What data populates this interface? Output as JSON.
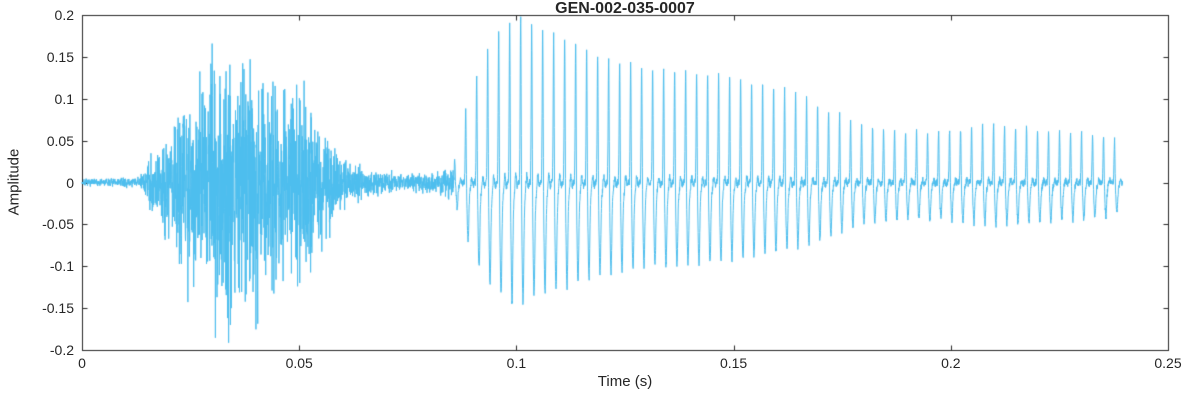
{
  "chart_data": {
    "type": "line",
    "title": "GEN-002-035-0007",
    "xlabel": "Time (s)",
    "ylabel": "Amplitude",
    "xlim": [
      0,
      0.25
    ],
    "ylim": [
      -0.2,
      0.2
    ],
    "xticks": [
      0,
      0.05,
      0.1,
      0.15,
      0.2,
      0.25
    ],
    "xtick_labels": [
      "0",
      "0.05",
      "0.1",
      "0.15",
      "0.2",
      "0.25"
    ],
    "yticks": [
      -0.2,
      -0.15,
      -0.1,
      -0.05,
      0,
      0.05,
      0.1,
      0.15,
      0.2
    ],
    "ytick_labels": [
      "-0.2",
      "-0.15",
      "-0.1",
      "-0.05",
      "0",
      "0.05",
      "0.1",
      "0.15",
      "0.2"
    ],
    "grid": false,
    "line_color": "#4DBEEE",
    "axis_color": "#262626",
    "background_color": "#ffffff",
    "waveform": {
      "description": "Speech-like audio waveform: initial silence, unvoiced noise burst peaking ~0.18 near t=0.034s, quiet gap, then strong periodic voiced segment peaking ~0.2 near t=0.1s and slowly decaying until signal ends at ~0.24s",
      "sample_rate": 24000,
      "duration": 0.2395,
      "segments": [
        {
          "type": "silence",
          "t0": 0,
          "t1": 0.014
        },
        {
          "type": "noise",
          "t0": 0.014,
          "t1": 0.062
        },
        {
          "type": "silence",
          "t0": 0.062,
          "t1": 0.0855
        },
        {
          "type": "voiced",
          "t0": 0.0855,
          "t1": 0.2395,
          "f0": 395
        }
      ],
      "envelope": [
        [
          0,
          0.004
        ],
        [
          0.013,
          0.006
        ],
        [
          0.018,
          0.05
        ],
        [
          0.022,
          0.1
        ],
        [
          0.027,
          0.12
        ],
        [
          0.031,
          0.14
        ],
        [
          0.034,
          0.18
        ],
        [
          0.037,
          0.15
        ],
        [
          0.04,
          0.13
        ],
        [
          0.045,
          0.12
        ],
        [
          0.05,
          0.11
        ],
        [
          0.054,
          0.08
        ],
        [
          0.058,
          0.05
        ],
        [
          0.062,
          0.02
        ],
        [
          0.07,
          0.012
        ],
        [
          0.08,
          0.012
        ],
        [
          0.0855,
          0.02
        ],
        [
          0.088,
          0.08
        ],
        [
          0.092,
          0.15
        ],
        [
          0.096,
          0.18
        ],
        [
          0.1,
          0.2
        ],
        [
          0.104,
          0.18
        ],
        [
          0.108,
          0.17
        ],
        [
          0.112,
          0.16
        ],
        [
          0.118,
          0.14
        ],
        [
          0.124,
          0.13
        ],
        [
          0.13,
          0.12
        ],
        [
          0.14,
          0.115
        ],
        [
          0.15,
          0.11
        ],
        [
          0.16,
          0.1
        ],
        [
          0.165,
          0.095
        ],
        [
          0.17,
          0.085
        ],
        [
          0.175,
          0.075
        ],
        [
          0.18,
          0.065
        ],
        [
          0.19,
          0.06
        ],
        [
          0.2,
          0.062
        ],
        [
          0.21,
          0.07
        ],
        [
          0.22,
          0.062
        ],
        [
          0.23,
          0.055
        ],
        [
          0.236,
          0.05
        ],
        [
          0.2395,
          0.04
        ]
      ]
    }
  }
}
